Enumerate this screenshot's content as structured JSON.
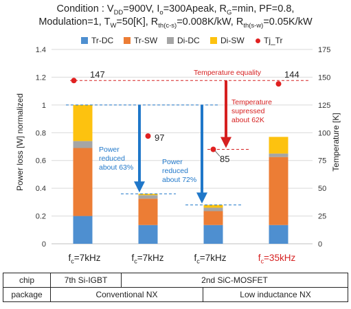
{
  "condition": {
    "line1": [
      "Condition : V",
      "DD",
      "=900V, I",
      "o",
      "=300Apeak, R",
      "G",
      "=min, PF=0.8,"
    ],
    "line2": [
      "Modulation=1, T",
      "W",
      "=50[K], R",
      "th(c-s)",
      "=0.008K/kW, R",
      "th(s-w)",
      "=0.05K/kW"
    ]
  },
  "colors": {
    "tr_dc": "#4e8fd0",
    "tr_sw": "#ec7d35",
    "di_dc": "#a5a5a5",
    "di_sw": "#fdc20f",
    "tj": "#e02020",
    "blue_annot": "#1f77c9",
    "red_annot": "#d62020"
  },
  "chart_data": {
    "type": "bar",
    "stacked": true,
    "categories": [
      "fc=7kHz",
      "fc=7kHz",
      "fc=7kHz",
      "fc=35kHz"
    ],
    "series": [
      {
        "name": "Tr-DC",
        "values": [
          0.2,
          0.135,
          0.135,
          0.135
        ]
      },
      {
        "name": "Tr-SW",
        "values": [
          0.49,
          0.19,
          0.1,
          0.49
        ]
      },
      {
        "name": "Di-DC",
        "values": [
          0.05,
          0.025,
          0.025,
          0.025
        ]
      },
      {
        "name": "Di-SW",
        "values": [
          0.26,
          0.01,
          0.02,
          0.12
        ]
      }
    ],
    "tj_series": {
      "name": "Tj_Tr",
      "values": [
        147,
        97,
        85,
        144
      ],
      "axis": "right"
    },
    "ylabel": "Power loss [W] normalized",
    "y2label": "Temperature [K]",
    "ylim": [
      0,
      1.4
    ],
    "y2lim": [
      0,
      175
    ],
    "yticks": [
      "0",
      "0.2",
      "0.4",
      "0.6",
      "0.8",
      "1",
      "1.2",
      "1.4"
    ],
    "y2ticks": [
      "0",
      "25",
      "50",
      "75",
      "100",
      "125",
      "150",
      "175"
    ],
    "legend": [
      "Tr-DC",
      "Tr-SW",
      "Di-DC",
      "Di-SW",
      "Tj_Tr"
    ],
    "legend_position": "top",
    "reference_lines": {
      "power_levels": [
        1.0,
        0.36,
        0.28
      ],
      "temperature_levels": [
        147,
        85
      ]
    }
  },
  "annotations": {
    "power_63": [
      "Power",
      "reduced",
      "about 63%"
    ],
    "power_72": [
      "Power",
      "reduced",
      "about 72%"
    ],
    "temp_equality": "Temperature equality",
    "temp_suppressed": [
      "Temperature",
      "supressed",
      "about 62K"
    ]
  },
  "value_labels": [
    "147",
    "97",
    "85",
    "144"
  ],
  "fc_labels": [
    {
      "main": "f",
      "sub": "c",
      "rest": "=7kHz"
    },
    {
      "main": "f",
      "sub": "c",
      "rest": "=7kHz"
    },
    {
      "main": "f",
      "sub": "c",
      "rest": "=7kHz"
    },
    {
      "main": "f",
      "sub": "c",
      "rest": "=35kHz"
    }
  ],
  "table": {
    "chip_label": "chip",
    "chip_si": "7th Si-IGBT",
    "chip_sic": "2nd SiC-MOSFET",
    "package_label": "package",
    "package_conv": "Conventional NX",
    "package_low": "Low inductance NX"
  }
}
